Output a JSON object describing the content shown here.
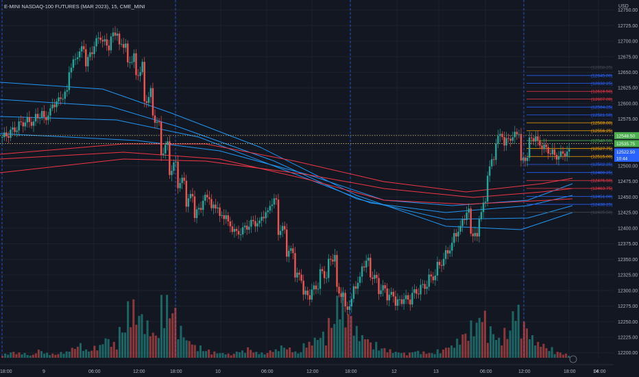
{
  "header": {
    "title": "E-MINI NASDAQ-100 FUTURES (MAR 2023), 15, CME_MINI",
    "currency": "USD"
  },
  "colors": {
    "background": "#131722",
    "up": "#26a69a",
    "down": "#ef5350",
    "blue": "#2962ff",
    "light_blue": "#2196f3",
    "red": "#f23645",
    "grid": "#1e222d"
  },
  "chart_data": {
    "type": "candlestick",
    "y_ticks": [
      12200,
      12225,
      12250,
      12275,
      12300,
      12325,
      12350,
      12375,
      12400,
      12425,
      12450,
      12475,
      12500,
      12525,
      12550,
      12575,
      12600,
      12625,
      12650,
      12675,
      12700,
      12725,
      12750
    ],
    "y_tick_labels": [
      "12200.00",
      "12225.00",
      "12250.00",
      "12275.00",
      "12300.00",
      "12325.00",
      "12350.00",
      "12375.00",
      "12400.00",
      "12425.00",
      "12450.00",
      "12475.00",
      "12500.00",
      "12525.00",
      "12550.00",
      "12575.00",
      "12600.00",
      "12625.00",
      "12650.00",
      "12675.00",
      "12700.00",
      "12725.00",
      "12750.00"
    ],
    "ylim": [
      12192,
      12766
    ],
    "x_labels": [
      "18:00",
      "9",
      "06:00",
      "12:00",
      "18:00",
      "10",
      "06:00",
      "12:00",
      "18:00",
      "12",
      "13",
      "06:00",
      "12:00",
      "18:00",
      "14",
      "04:00"
    ],
    "price_path": [
      [
        12546,
        12552
      ],
      [
        12555,
        12562
      ],
      [
        12566,
        12572
      ],
      [
        12572,
        12568
      ],
      [
        12578,
        12585
      ],
      [
        12575,
        12590
      ],
      [
        12598,
        12606
      ],
      [
        12610,
        12620
      ],
      [
        12655,
        12675
      ],
      [
        12680,
        12692
      ],
      [
        12665,
        12690
      ],
      [
        12695,
        12712
      ],
      [
        12700,
        12688
      ],
      [
        12705,
        12720
      ],
      [
        12690,
        12700
      ],
      [
        12660,
        12685
      ],
      [
        12640,
        12670
      ],
      [
        12600,
        12625
      ],
      [
        12580,
        12560
      ],
      [
        12520,
        12540
      ],
      [
        12490,
        12510
      ],
      [
        12470,
        12480
      ],
      [
        12440,
        12460
      ],
      [
        12420,
        12440
      ],
      [
        12445,
        12455
      ],
      [
        12430,
        12440
      ],
      [
        12415,
        12425
      ],
      [
        12405,
        12395
      ],
      [
        12390,
        12400
      ],
      [
        12400,
        12410
      ],
      [
        12410,
        12405
      ],
      [
        12420,
        12425
      ],
      [
        12440,
        12445
      ],
      [
        12395,
        12400
      ],
      [
        12360,
        12365
      ],
      [
        12325,
        12320
      ],
      [
        12295,
        12290
      ],
      [
        12300,
        12310
      ],
      [
        12330,
        12320
      ],
      [
        12345,
        12360
      ],
      [
        12300,
        12290
      ],
      [
        12270,
        12285
      ],
      [
        12305,
        12320
      ],
      [
        12340,
        12350
      ],
      [
        12325,
        12315
      ],
      [
        12300,
        12305
      ],
      [
        12290,
        12295
      ],
      [
        12280,
        12285
      ],
      [
        12288,
        12282
      ],
      [
        12295,
        12300
      ],
      [
        12305,
        12310
      ],
      [
        12320,
        12325
      ],
      [
        12340,
        12350
      ],
      [
        12360,
        12375
      ],
      [
        12390,
        12400
      ],
      [
        12415,
        12430
      ],
      [
        12395,
        12380
      ],
      [
        12420,
        12450
      ],
      [
        12490,
        12520
      ],
      [
        12540,
        12555
      ],
      [
        12535,
        12550
      ],
      [
        12545,
        12560
      ],
      [
        12505,
        12520
      ],
      [
        12540,
        12550
      ],
      [
        12535,
        12530
      ],
      [
        12525,
        12520
      ],
      [
        12515,
        12518
      ],
      [
        12520,
        12522
      ]
    ],
    "volume_relative": [
      0.04,
      0.06,
      0.05,
      0.03,
      0.08,
      0.05,
      0.04,
      0.06,
      0.1,
      0.14,
      0.08,
      0.12,
      0.2,
      0.15,
      0.3,
      0.55,
      0.45,
      0.35,
      0.25,
      0.6,
      0.5,
      0.3,
      0.18,
      0.12,
      0.08,
      0.06,
      0.05,
      0.04,
      0.07,
      0.1,
      0.06,
      0.05,
      0.08,
      0.12,
      0.1,
      0.06,
      0.15,
      0.2,
      0.25,
      0.38,
      0.62,
      0.45,
      0.3,
      0.22,
      0.15,
      0.1,
      0.08,
      0.06,
      0.05,
      0.07,
      0.06,
      0.05,
      0.08,
      0.12,
      0.18,
      0.25,
      0.35,
      0.45,
      0.3,
      0.2,
      0.28,
      0.5,
      0.35,
      0.22,
      0.15,
      0.1,
      0.06,
      0.04
    ],
    "price_levels": [
      {
        "label": "12658.25",
        "price": 12658.25,
        "color": "#434651"
      },
      {
        "label": "12645.00",
        "price": 12645.0,
        "color": "#2962ff"
      },
      {
        "label": "12632.25",
        "price": 12632.25,
        "color": "#2962ff"
      },
      {
        "label": "12619.50",
        "price": 12619.5,
        "color": "#f23645"
      },
      {
        "label": "12607.00",
        "price": 12607.0,
        "color": "#f23645"
      },
      {
        "label": "12594.25",
        "price": 12594.25,
        "color": "#2962ff"
      },
      {
        "label": "12581.50",
        "price": 12581.5,
        "color": "#2962ff"
      },
      {
        "label": "12569.00",
        "price": 12569.0,
        "color": "#f7a600"
      },
      {
        "label": "12556.25",
        "price": 12556.25,
        "color": "#f7a600"
      },
      {
        "label": "12540.50",
        "price": 12540.5,
        "color": "#4caf50"
      },
      {
        "label": "12527.75",
        "price": 12527.75,
        "color": "#f7a600"
      },
      {
        "label": "12515.00",
        "price": 12515.0,
        "color": "#f7a600"
      },
      {
        "label": "12502.25",
        "price": 12502.25,
        "color": "#2962ff"
      },
      {
        "label": "12489.25",
        "price": 12489.25,
        "color": "#2962ff"
      },
      {
        "label": "12476.50",
        "price": 12476.5,
        "color": "#f23645"
      },
      {
        "label": "12463.75",
        "price": 12463.75,
        "color": "#f23645"
      },
      {
        "label": "12451.00",
        "price": 12451.0,
        "color": "#2962ff"
      },
      {
        "label": "12438.25",
        "price": 12438.25,
        "color": "#2962ff"
      },
      {
        "label": "12425.50",
        "price": 12425.5,
        "color": "#434651"
      }
    ],
    "tags": [
      {
        "label": "12548.50",
        "price": 12548.5,
        "color": "#4caf50"
      },
      {
        "label": "12535.75",
        "price": 12535.75,
        "color": "#4caf50"
      },
      {
        "label": "12522.50",
        "price": 12522.5,
        "color": "#2962ff"
      },
      {
        "label": "10:44",
        "price": 12512,
        "color": "#2962ff"
      }
    ]
  }
}
